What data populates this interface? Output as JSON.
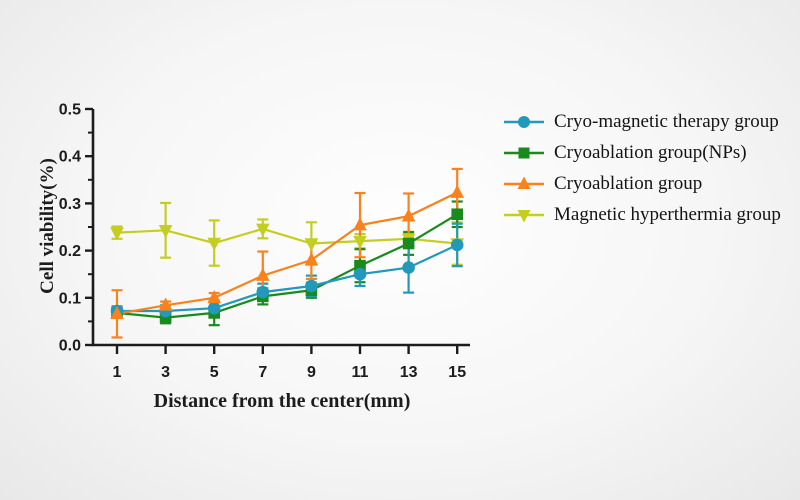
{
  "chart_data": {
    "type": "line",
    "title": "",
    "xlabel": "Distance from the center(mm)",
    "ylabel": "Cell viability(%)",
    "x": [
      1,
      3,
      5,
      7,
      9,
      11,
      13,
      15
    ],
    "xticks": [
      "1",
      "3",
      "5",
      "7",
      "9",
      "11",
      "13",
      "15"
    ],
    "yticks": [
      "0.0",
      "0.1",
      "0.2",
      "0.3",
      "0.4",
      "0.5"
    ],
    "xlim": [
      0,
      16
    ],
    "ylim": [
      0,
      0.5
    ],
    "y_minor_tick_step": 0.05,
    "grid": false,
    "error_bars": true,
    "legend_position": "right",
    "axis_color": "#1c1c1c",
    "series": [
      {
        "name": "Cryo-magnetic therapy group",
        "color": "#2299ba",
        "marker": "circle",
        "values": [
          0.072,
          0.072,
          0.078,
          0.112,
          0.125,
          0.15,
          0.164,
          0.212
        ],
        "errors": [
          0.01,
          0.012,
          0.014,
          0.018,
          0.022,
          0.025,
          0.053,
          0.045
        ]
      },
      {
        "name": "Cryoablation group(NPs)",
        "color": "#1b8a1e",
        "marker": "square",
        "values": [
          0.068,
          0.058,
          0.068,
          0.103,
          0.116,
          0.168,
          0.215,
          0.277
        ],
        "errors": [
          0.01,
          0.012,
          0.026,
          0.017,
          0.016,
          0.035,
          0.024,
          0.027
        ]
      },
      {
        "name": "Cryoablation group",
        "color": "#f9821d",
        "marker": "triangle-up",
        "values": [
          0.066,
          0.084,
          0.1,
          0.147,
          0.18,
          0.254,
          0.273,
          0.323
        ],
        "errors": [
          0.05,
          0.008,
          0.01,
          0.051,
          0.04,
          0.068,
          0.048,
          0.05
        ]
      },
      {
        "name": "Magnetic hyperthermia group",
        "color": "#c4ce21",
        "marker": "triangle-down",
        "values": [
          0.238,
          0.243,
          0.216,
          0.246,
          0.215,
          0.22,
          0.225,
          0.215
        ],
        "errors": [
          0.013,
          0.058,
          0.048,
          0.02,
          0.045,
          0.015,
          0.015,
          0.045
        ]
      }
    ]
  }
}
